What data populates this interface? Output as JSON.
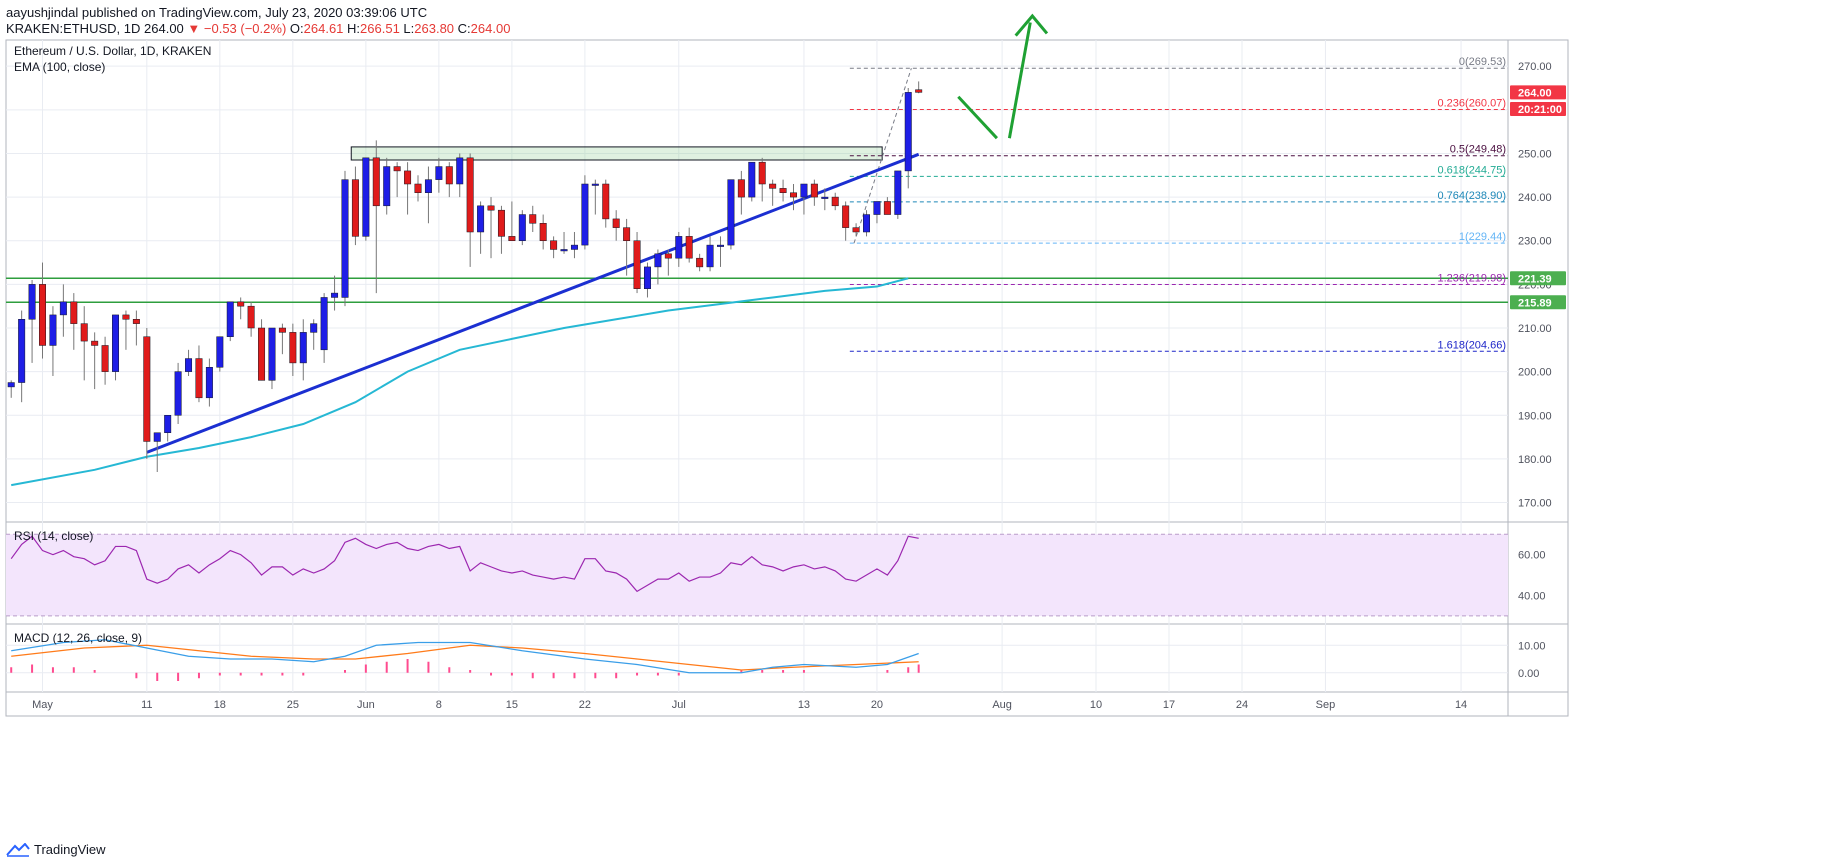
{
  "header": {
    "line1": "aayushjindal published on TradingView.com, July 23, 2020 03:39:06 UTC",
    "symbol": "KRAKEN:ETHUSD,",
    "price": "1D",
    "last": "264.00",
    "change": "▼ −0.53 (−0.2%)",
    "ohlc": {
      "o_label": "O:",
      "o": "264.61",
      "h_label": "H:",
      "h": "266.51",
      "l_label": "L:",
      "l": "263.80",
      "c_label": "C:",
      "c": "264.00"
    }
  },
  "footer": {
    "brand": "TradingView"
  },
  "chart_data": {
    "type": "candlestick",
    "title": "Ethereum / U.S. Dollar, 1D, KRAKEN",
    "indicator_label": "EMA (100, close)",
    "ylim": [
      166,
      276
    ],
    "y_ticks": [
      170,
      180,
      190,
      200,
      210,
      220,
      230,
      240,
      250,
      260,
      270
    ],
    "x_ticks": [
      "May",
      "11",
      "18",
      "25",
      "Jun",
      "8",
      "15",
      "22",
      "Jul",
      "13",
      "20",
      "Aug",
      "10",
      "17",
      "24",
      "Sep",
      "14"
    ],
    "x_tick_days": [
      0,
      10,
      17,
      24,
      31,
      38,
      45,
      52,
      61,
      73,
      80,
      92,
      101,
      108,
      115,
      123,
      136
    ],
    "x_range_days": [
      -3.5,
      140.5
    ],
    "price_tags": [
      {
        "label": "264.00",
        "value": 264.0,
        "color": "#f23645"
      },
      {
        "label": "20:21:00",
        "value": 260.2,
        "color": "#f23645"
      },
      {
        "label": "221.39",
        "value": 221.39,
        "color": "#4caf50"
      },
      {
        "label": "215.89",
        "value": 215.89,
        "color": "#4caf50"
      }
    ],
    "support_lines": [
      221.39,
      215.89
    ],
    "fib_levels": [
      {
        "label": "0(269.53)",
        "value": 269.53,
        "color": "#787b86"
      },
      {
        "label": "0.236(260.07)",
        "value": 260.07,
        "color": "#f23645"
      },
      {
        "label": "0.5(249.48)",
        "value": 249.48,
        "color": "#4a0f40"
      },
      {
        "label": "0.618(244.75)",
        "value": 244.75,
        "color": "#22ab94"
      },
      {
        "label": "0.764(238.90)",
        "value": 238.9,
        "color": "#1e88b8"
      },
      {
        "label": "1(229.44)",
        "value": 229.44,
        "color": "#64b5f6"
      },
      {
        "label": "1.236(219.98)",
        "value": 219.98,
        "color": "#9c27b0"
      },
      {
        "label": "1.618(204.66)",
        "value": 204.66,
        "color": "#1e26c8"
      }
    ],
    "resistance_zone": [
      248.5,
      251.5
    ],
    "trendline": [
      [
        10,
        181.5
      ],
      [
        84,
        249.8
      ]
    ],
    "candles": [
      [
        -3,
        196.5,
        198,
        194,
        197.5
      ],
      [
        -2,
        197.5,
        214,
        193,
        212
      ],
      [
        -1,
        212,
        221,
        202,
        220
      ],
      [
        0,
        220,
        225,
        203,
        206
      ],
      [
        1,
        206,
        215,
        199,
        213
      ],
      [
        2,
        213,
        220,
        208,
        216
      ],
      [
        3,
        216,
        218,
        205,
        211
      ],
      [
        4,
        211,
        215,
        198,
        207
      ],
      [
        5,
        207,
        209,
        196,
        206
      ],
      [
        6,
        206,
        208,
        197,
        200
      ],
      [
        7,
        200,
        213,
        198,
        213
      ],
      [
        8,
        213,
        214,
        205,
        212
      ],
      [
        9,
        212,
        214,
        206,
        211
      ],
      [
        10,
        208,
        210,
        180,
        184
      ],
      [
        11,
        184,
        186,
        177,
        186
      ],
      [
        12,
        186,
        190,
        184,
        190
      ],
      [
        13,
        190,
        202,
        188,
        200
      ],
      [
        14,
        200,
        205,
        199,
        203
      ],
      [
        15,
        203,
        206,
        193,
        194
      ],
      [
        16,
        194,
        203,
        192,
        201
      ],
      [
        17,
        201,
        208,
        200,
        208
      ],
      [
        18,
        208,
        216,
        207,
        216
      ],
      [
        19,
        216,
        217,
        212,
        215
      ],
      [
        20,
        215,
        216,
        208,
        210
      ],
      [
        21,
        210,
        212,
        198,
        198
      ],
      [
        22,
        198,
        209,
        196,
        210
      ],
      [
        23,
        210,
        211,
        204,
        209
      ],
      [
        24,
        209,
        211,
        199,
        202
      ],
      [
        25,
        202,
        212,
        198,
        209
      ],
      [
        26,
        209,
        212,
        205,
        211
      ],
      [
        27,
        205,
        218,
        202,
        217
      ],
      [
        28,
        217,
        222,
        214,
        218
      ],
      [
        29,
        217,
        246,
        215,
        244
      ],
      [
        30,
        244,
        247,
        229,
        231
      ],
      [
        31,
        231,
        249,
        230,
        249
      ],
      [
        32,
        249,
        253,
        218,
        238
      ],
      [
        33,
        238,
        249,
        236,
        247
      ],
      [
        34,
        247,
        248,
        240,
        246
      ],
      [
        35,
        246,
        248,
        236,
        243
      ],
      [
        36,
        243,
        245,
        239,
        241
      ],
      [
        37,
        241,
        247,
        234,
        244
      ],
      [
        38,
        244,
        249,
        241,
        247
      ],
      [
        39,
        247,
        248,
        240,
        243
      ],
      [
        40,
        243,
        250,
        240,
        249
      ],
      [
        41,
        249,
        250,
        224,
        232
      ],
      [
        42,
        232,
        239,
        227,
        238
      ],
      [
        43,
        238,
        240,
        226,
        237
      ],
      [
        44,
        237,
        238,
        227,
        231
      ],
      [
        45,
        231,
        239,
        230,
        230
      ],
      [
        46,
        230,
        237,
        229,
        236
      ],
      [
        47,
        236,
        238,
        232,
        234
      ],
      [
        48,
        234,
        236,
        228,
        230
      ],
      [
        49,
        230,
        231,
        226,
        228
      ],
      [
        50,
        228,
        232,
        227,
        228
      ],
      [
        51,
        228,
        232,
        226,
        229
      ],
      [
        52,
        229,
        245,
        228,
        243
      ],
      [
        53,
        243,
        244,
        236,
        243
      ],
      [
        54,
        243,
        244,
        233,
        235
      ],
      [
        55,
        235,
        237,
        230,
        233
      ],
      [
        56,
        233,
        235,
        222,
        230
      ],
      [
        57,
        230,
        232,
        218,
        219
      ],
      [
        58,
        219,
        225,
        217,
        224
      ],
      [
        59,
        224,
        228,
        220,
        227
      ],
      [
        60,
        227,
        228,
        222,
        226
      ],
      [
        61,
        226,
        232,
        224,
        231
      ],
      [
        62,
        231,
        233,
        225,
        226
      ],
      [
        63,
        226,
        227,
        223,
        224
      ],
      [
        64,
        224,
        231,
        223,
        229
      ],
      [
        65,
        229,
        231,
        224,
        229
      ],
      [
        66,
        229,
        244,
        228,
        244
      ],
      [
        67,
        244,
        246,
        236,
        240
      ],
      [
        68,
        240,
        248,
        239,
        248
      ],
      [
        69,
        248,
        249,
        239,
        243
      ],
      [
        70,
        243,
        244,
        238,
        242
      ],
      [
        71,
        242,
        244,
        239,
        241
      ],
      [
        72,
        241,
        243,
        237,
        240
      ],
      [
        73,
        240,
        243,
        236,
        243
      ],
      [
        74,
        243,
        244,
        238,
        240
      ],
      [
        75,
        240,
        242,
        237,
        240
      ],
      [
        76,
        240,
        241,
        237,
        238
      ],
      [
        77,
        238,
        239,
        230,
        233
      ],
      [
        78,
        233,
        234,
        231,
        232
      ],
      [
        79,
        232,
        237,
        231,
        236
      ],
      [
        80,
        236,
        239,
        234,
        239
      ],
      [
        81,
        239,
        240,
        236,
        236
      ],
      [
        82,
        236,
        246,
        235,
        246
      ],
      [
        83,
        246,
        265,
        242,
        264
      ],
      [
        84,
        264.61,
        266.51,
        263.8,
        264
      ]
    ],
    "ema": [
      [
        -3,
        174
      ],
      [
        5,
        177.5
      ],
      [
        10,
        180.5
      ],
      [
        15,
        182.5
      ],
      [
        20,
        185
      ],
      [
        25,
        188
      ],
      [
        30,
        193
      ],
      [
        35,
        200
      ],
      [
        40,
        205
      ],
      [
        45,
        207.5
      ],
      [
        50,
        210
      ],
      [
        55,
        212
      ],
      [
        60,
        214
      ],
      [
        65,
        215.5
      ],
      [
        70,
        217
      ],
      [
        75,
        218.5
      ],
      [
        80,
        219.5
      ],
      [
        83,
        221.4
      ]
    ],
    "rsi": {
      "label": "RSI (14, close)",
      "ylim": [
        27,
        75
      ],
      "ticks": [
        40,
        60
      ],
      "band": [
        30,
        70
      ],
      "points": [
        [
          -3,
          58
        ],
        [
          -2,
          65
        ],
        [
          -1,
          69
        ],
        [
          0,
          62
        ],
        [
          1,
          60
        ],
        [
          2,
          62
        ],
        [
          3,
          59
        ],
        [
          4,
          58
        ],
        [
          5,
          55
        ],
        [
          6,
          57
        ],
        [
          7,
          64
        ],
        [
          8,
          64
        ],
        [
          9,
          62
        ],
        [
          10,
          48
        ],
        [
          11,
          46
        ],
        [
          12,
          48
        ],
        [
          13,
          53
        ],
        [
          14,
          55
        ],
        [
          15,
          51
        ],
        [
          16,
          55
        ],
        [
          17,
          58
        ],
        [
          18,
          62
        ],
        [
          19,
          60
        ],
        [
          20,
          56
        ],
        [
          21,
          50
        ],
        [
          22,
          54
        ],
        [
          23,
          54
        ],
        [
          24,
          50
        ],
        [
          25,
          53
        ],
        [
          26,
          51
        ],
        [
          27,
          53
        ],
        [
          28,
          57
        ],
        [
          29,
          66
        ],
        [
          30,
          68
        ],
        [
          31,
          65
        ],
        [
          32,
          63
        ],
        [
          33,
          65
        ],
        [
          34,
          66
        ],
        [
          35,
          63
        ],
        [
          36,
          62
        ],
        [
          37,
          64
        ],
        [
          38,
          65
        ],
        [
          39,
          63
        ],
        [
          40,
          64
        ],
        [
          41,
          52
        ],
        [
          42,
          56
        ],
        [
          43,
          54
        ],
        [
          44,
          52
        ],
        [
          45,
          51
        ],
        [
          46,
          52
        ],
        [
          47,
          50
        ],
        [
          48,
          49
        ],
        [
          49,
          48
        ],
        [
          50,
          49
        ],
        [
          51,
          48
        ],
        [
          52,
          58
        ],
        [
          53,
          58
        ],
        [
          54,
          52
        ],
        [
          55,
          51
        ],
        [
          56,
          48
        ],
        [
          57,
          42
        ],
        [
          58,
          45
        ],
        [
          59,
          48
        ],
        [
          60,
          48
        ],
        [
          61,
          51
        ],
        [
          62,
          47
        ],
        [
          63,
          49
        ],
        [
          64,
          49
        ],
        [
          65,
          51
        ],
        [
          66,
          56
        ],
        [
          67,
          55
        ],
        [
          68,
          59
        ],
        [
          69,
          55
        ],
        [
          70,
          54
        ],
        [
          71,
          52
        ],
        [
          72,
          54
        ],
        [
          73,
          55
        ],
        [
          74,
          53
        ],
        [
          75,
          54
        ],
        [
          76,
          52
        ],
        [
          77,
          48
        ],
        [
          78,
          47
        ],
        [
          79,
          50
        ],
        [
          80,
          53
        ],
        [
          81,
          50
        ],
        [
          82,
          57
        ],
        [
          83,
          69
        ],
        [
          84,
          68
        ]
      ]
    },
    "macd": {
      "label": "MACD (12, 26, close, 9)",
      "ylim": [
        -7,
        17
      ],
      "ticks": [
        0,
        10
      ],
      "macd_line": [
        [
          -3,
          8
        ],
        [
          2,
          11
        ],
        [
          6,
          12
        ],
        [
          10,
          9
        ],
        [
          14,
          6
        ],
        [
          18,
          5
        ],
        [
          22,
          5
        ],
        [
          26,
          4
        ],
        [
          29,
          6
        ],
        [
          32,
          10
        ],
        [
          36,
          11
        ],
        [
          41,
          11
        ],
        [
          46,
          8
        ],
        [
          52,
          5
        ],
        [
          57,
          3
        ],
        [
          62,
          0
        ],
        [
          67,
          0
        ],
        [
          70,
          2
        ],
        [
          73,
          3
        ],
        [
          78,
          2
        ],
        [
          81,
          3
        ],
        [
          84,
          7
        ]
      ],
      "signal_line": [
        [
          -3,
          6
        ],
        [
          4,
          9
        ],
        [
          10,
          10
        ],
        [
          15,
          8
        ],
        [
          20,
          6
        ],
        [
          26,
          5
        ],
        [
          30,
          5
        ],
        [
          35,
          7
        ],
        [
          41,
          10
        ],
        [
          46,
          9
        ],
        [
          52,
          7
        ],
        [
          57,
          5
        ],
        [
          62,
          3
        ],
        [
          67,
          1
        ],
        [
          72,
          2
        ],
        [
          78,
          3
        ],
        [
          84,
          4
        ]
      ],
      "histogram": [
        [
          -3,
          2
        ],
        [
          -1,
          3
        ],
        [
          1,
          2
        ],
        [
          3,
          2
        ],
        [
          5,
          1
        ],
        [
          7,
          0
        ],
        [
          9,
          -2
        ],
        [
          11,
          -3
        ],
        [
          13,
          -3
        ],
        [
          15,
          -2
        ],
        [
          17,
          -1
        ],
        [
          19,
          -1
        ],
        [
          21,
          -1
        ],
        [
          23,
          -1
        ],
        [
          25,
          -1
        ],
        [
          27,
          0
        ],
        [
          29,
          1
        ],
        [
          31,
          3
        ],
        [
          33,
          4
        ],
        [
          35,
          5
        ],
        [
          37,
          4
        ],
        [
          39,
          2
        ],
        [
          41,
          1
        ],
        [
          43,
          -1
        ],
        [
          45,
          -1
        ],
        [
          47,
          -2
        ],
        [
          49,
          -2
        ],
        [
          51,
          -2
        ],
        [
          53,
          -2
        ],
        [
          55,
          -2
        ],
        [
          57,
          -1
        ],
        [
          59,
          -1
        ],
        [
          61,
          -1
        ],
        [
          63,
          0
        ],
        [
          65,
          0
        ],
        [
          67,
          1
        ],
        [
          69,
          1
        ],
        [
          71,
          1
        ],
        [
          73,
          1
        ],
        [
          75,
          0
        ],
        [
          77,
          0
        ],
        [
          79,
          0
        ],
        [
          81,
          1
        ],
        [
          83,
          2
        ],
        [
          84,
          3
        ]
      ]
    }
  }
}
